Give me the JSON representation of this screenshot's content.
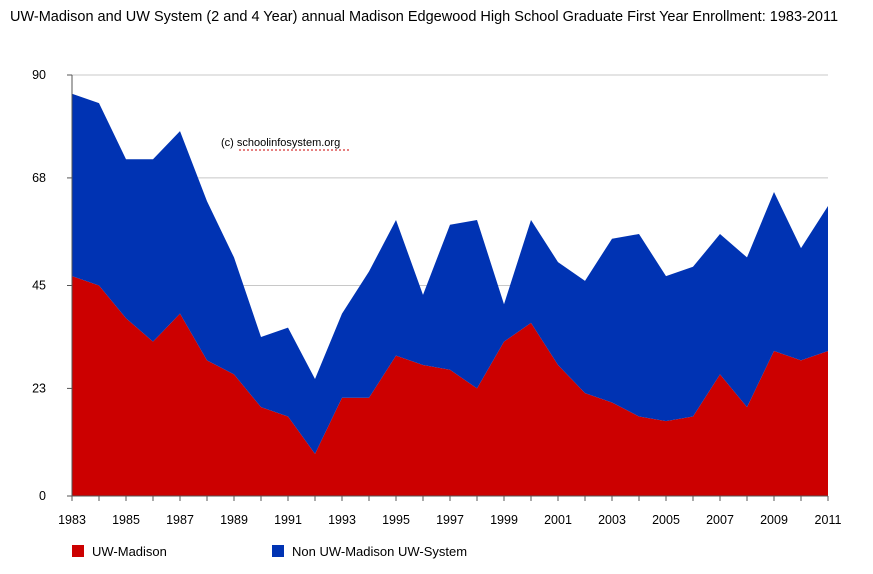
{
  "chart_data": {
    "type": "area",
    "stacked": true,
    "title": "UW-Madison and UW System (2 and 4 Year) annual Madison Edgewood High School Graduate First Year Enrollment: 1983-2011",
    "xlabel": "",
    "ylabel": "",
    "x": [
      1983,
      1984,
      1985,
      1986,
      1987,
      1988,
      1989,
      1990,
      1991,
      1992,
      1993,
      1994,
      1995,
      1996,
      1997,
      1998,
      1999,
      2000,
      2001,
      2002,
      2003,
      2004,
      2005,
      2006,
      2007,
      2008,
      2009,
      2010,
      2011
    ],
    "x_tick_labels": [
      "1983",
      "1985",
      "1987",
      "1989",
      "1991",
      "1993",
      "1995",
      "1997",
      "1999",
      "2001",
      "2003",
      "2005",
      "2007",
      "2009",
      "2011"
    ],
    "y_tick_labels": [
      "0",
      "23",
      "45",
      "68",
      "90"
    ],
    "ylim": [
      0,
      90
    ],
    "grid": "horizontal",
    "legend_position": "bottom-left",
    "series": [
      {
        "name": "UW-Madison",
        "color": "#cc0000",
        "values": [
          47,
          45,
          38,
          33,
          39,
          29,
          26,
          19,
          17,
          9,
          21,
          21,
          30,
          28,
          27,
          23,
          33,
          37,
          28,
          22,
          20,
          17,
          16,
          17,
          26,
          19,
          31,
          29,
          31
        ]
      },
      {
        "name": "Non UW-Madison UW-System",
        "color": "#0033b3",
        "values": [
          39,
          39,
          34,
          39,
          39,
          34,
          25,
          15,
          19,
          16,
          18,
          27,
          29,
          15,
          31,
          36,
          8,
          22,
          22,
          24,
          35,
          39,
          31,
          32,
          30,
          32,
          34,
          24,
          31
        ]
      }
    ],
    "annotation": "(c) schoolinfosystem.org"
  }
}
